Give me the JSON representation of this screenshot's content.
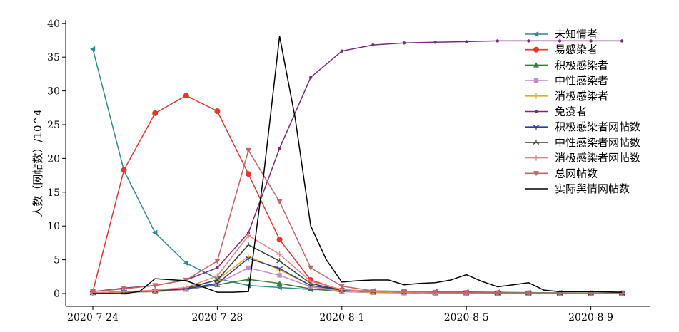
{
  "chart_data": {
    "type": "line",
    "title": "",
    "xlabel": "",
    "ylabel": "人数（网帖数）/10^4",
    "ylim": [
      0,
      40
    ],
    "yticks": [
      0,
      5,
      10,
      15,
      20,
      25,
      30,
      35,
      40
    ],
    "x_tick_labels": [
      "2020-7-24",
      "2020-7-28",
      "2020-8-1",
      "2020-8-5",
      "2020-8-9"
    ],
    "x_dates": [
      "2020-7-24",
      "2020-7-25",
      "2020-7-26",
      "2020-7-27",
      "2020-7-28",
      "2020-7-29",
      "2020-7-30",
      "2020-7-31",
      "2020-8-1",
      "2020-8-2",
      "2020-8-3",
      "2020-8-4",
      "2020-8-5",
      "2020-8-6",
      "2020-8-7",
      "2020-8-8",
      "2020-8-9",
      "2020-8-10"
    ],
    "grid": false,
    "legend_position": "top-right",
    "series": [
      {
        "name": "未知情者",
        "color": "#2e8b8b",
        "marker": "triangle-left",
        "values": [
          36.2,
          18.2,
          9.0,
          4.5,
          2.2,
          1.2,
          0.9,
          0.6,
          0.5,
          0.4,
          0.35,
          0.3,
          0.25,
          0.2,
          0.15,
          0.12,
          0.1,
          0.08
        ]
      },
      {
        "name": "易感染者",
        "color": "#e8362c",
        "marker": "circle",
        "values": [
          0.3,
          18.3,
          26.7,
          29.3,
          27.0,
          17.7,
          8.0,
          2.0,
          0.5,
          0.3,
          0.2,
          0.1,
          0.1,
          0.05,
          0.05,
          0.03,
          0.02,
          0.02
        ]
      },
      {
        "name": "积极感染者",
        "color": "#3a7d3a",
        "marker": "triangle-up",
        "values": [
          0.1,
          0.2,
          0.3,
          0.6,
          1.3,
          2.1,
          1.5,
          0.7,
          0.3,
          0.15,
          0.1,
          0.05,
          0.05,
          0.03,
          0.02,
          0.02,
          0.01,
          0.01
        ]
      },
      {
        "name": "中性感染者",
        "color": "#c58bc5",
        "marker": "square",
        "values": [
          0.1,
          0.2,
          0.3,
          0.6,
          1.5,
          3.8,
          2.7,
          1.0,
          0.3,
          0.15,
          0.1,
          0.05,
          0.05,
          0.03,
          0.02,
          0.02,
          0.01,
          0.01
        ]
      },
      {
        "name": "消极感染者",
        "color": "#f5a623",
        "marker": "plus",
        "values": [
          0.1,
          0.2,
          0.4,
          0.7,
          2.0,
          5.5,
          3.5,
          1.2,
          0.4,
          0.2,
          0.1,
          0.05,
          0.05,
          0.03,
          0.02,
          0.02,
          0.01,
          0.01
        ]
      },
      {
        "name": "免疫者",
        "color": "#7a2a7a",
        "marker": "dot",
        "values": [
          0.3,
          0.8,
          1.2,
          2.0,
          3.8,
          9.0,
          21.5,
          32.0,
          35.9,
          36.8,
          37.1,
          37.2,
          37.3,
          37.4,
          37.4,
          37.4,
          37.4,
          37.4
        ]
      },
      {
        "name": "积极感染者网帖数",
        "color": "#2b3fa0",
        "marker": "tri-down",
        "values": [
          0.1,
          0.3,
          0.4,
          0.7,
          1.5,
          5.2,
          3.7,
          1.2,
          0.5,
          0.3,
          0.2,
          0.1,
          0.1,
          0.05,
          0.05,
          0.03,
          0.02,
          0.02
        ]
      },
      {
        "name": "中性感染者网帖数",
        "color": "#33453a",
        "marker": "tri-up",
        "values": [
          0.1,
          0.3,
          0.4,
          0.8,
          2.0,
          7.2,
          4.8,
          1.5,
          0.5,
          0.3,
          0.2,
          0.1,
          0.1,
          0.05,
          0.05,
          0.03,
          0.02,
          0.02
        ]
      },
      {
        "name": "消极感染者网帖数",
        "color": "#f08080",
        "marker": "plus",
        "values": [
          0.1,
          0.3,
          0.5,
          0.9,
          2.6,
          8.6,
          5.8,
          1.8,
          0.6,
          0.3,
          0.2,
          0.1,
          0.1,
          0.05,
          0.05,
          0.03,
          0.02,
          0.02
        ]
      },
      {
        "name": "总网帖数",
        "color": "#c96363",
        "marker": "triangle-down",
        "values": [
          0.3,
          0.7,
          1.2,
          2.0,
          4.8,
          21.2,
          13.6,
          3.8,
          1.1,
          0.4,
          0.3,
          0.2,
          0.15,
          0.1,
          0.1,
          0.08,
          0.05,
          0.05
        ]
      },
      {
        "name": "实际舆情网帖数",
        "color": "#000000",
        "marker": "none",
        "x_frac": [
          0,
          0.5,
          1,
          1.5,
          2,
          3,
          4,
          4.5,
          5,
          5.5,
          6,
          6.5,
          7,
          7.5,
          8,
          8.5,
          9,
          9.5,
          10,
          10.5,
          11,
          11.5,
          12,
          12.5,
          13,
          13.5,
          14,
          14.5,
          15,
          15.5,
          16,
          16.5,
          17
        ],
        "values": [
          0.0,
          0.0,
          0.0,
          0.3,
          2.2,
          1.9,
          0.2,
          0.2,
          0.3,
          18.0,
          38.1,
          26.0,
          10.0,
          5.0,
          1.7,
          1.9,
          2.0,
          2.0,
          1.3,
          1.5,
          1.6,
          2.0,
          2.8,
          1.8,
          1.0,
          1.3,
          1.6,
          0.5,
          0.3,
          0.3,
          0.3,
          0.25,
          0.2
        ]
      }
    ]
  }
}
